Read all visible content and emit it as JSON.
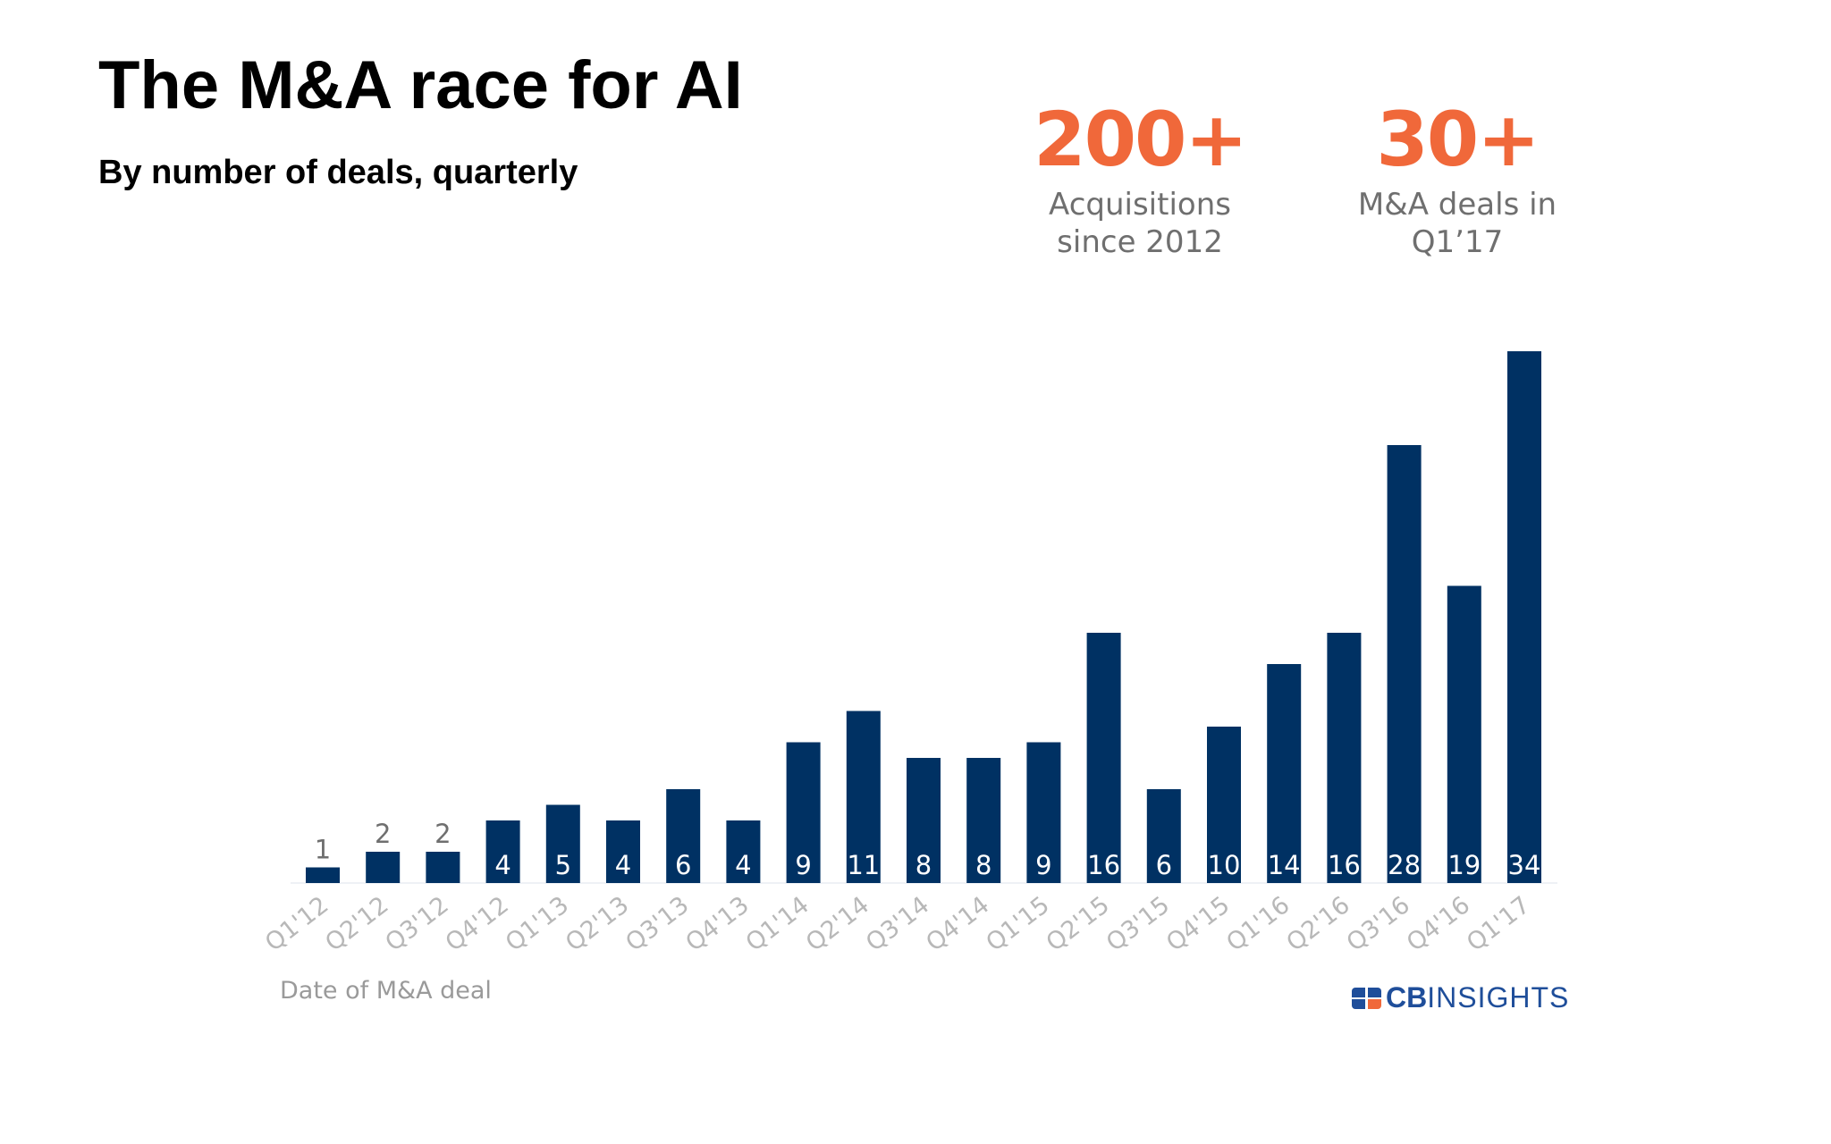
{
  "title": "The M&A race for AI",
  "subtitle": "By number of deals, quarterly",
  "stats": [
    {
      "value": "200+",
      "label_lines": [
        "Acquisitions",
        "since 2012"
      ]
    },
    {
      "value": "30+",
      "label_lines": [
        "M&A deals in",
        "Q1’17"
      ]
    }
  ],
  "brand": {
    "logo_bold": "CB",
    "logo_light": "INSIGHTS"
  },
  "colors": {
    "bar": "#003163",
    "accent": "#f0683a",
    "label_inside": "#ffffff",
    "label_outside": "#6f6f6f",
    "tick": "#b8b8b8",
    "xlabel": "#9a9a9a"
  },
  "chart_data": {
    "type": "bar",
    "title": "The M&A race for AI",
    "subtitle": "By number of deals, quarterly",
    "xlabel": "Date of M&A deal",
    "ylabel": "",
    "ylim": [
      0,
      34
    ],
    "grid": false,
    "legend": "none",
    "categories": [
      "Q1'12",
      "Q2'12",
      "Q3'12",
      "Q4'12",
      "Q1'13",
      "Q2'13",
      "Q3'13",
      "Q4'13",
      "Q1'14",
      "Q2'14",
      "Q3'14",
      "Q4'14",
      "Q1'15",
      "Q2'15",
      "Q3'15",
      "Q4'15",
      "Q1'16",
      "Q2'16",
      "Q3'16",
      "Q4'16",
      "Q1'17"
    ],
    "values": [
      1,
      2,
      2,
      4,
      5,
      4,
      6,
      4,
      9,
      11,
      8,
      8,
      9,
      16,
      6,
      10,
      14,
      16,
      28,
      19,
      34
    ]
  }
}
